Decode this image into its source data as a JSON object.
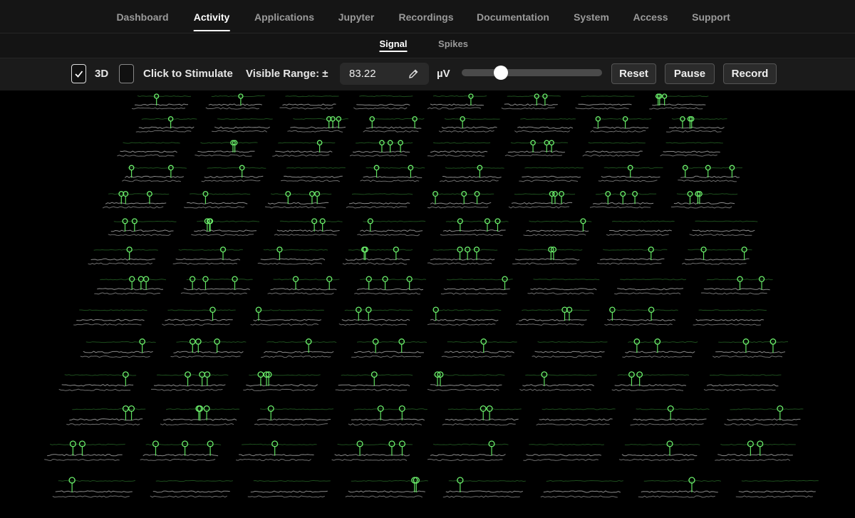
{
  "nav": {
    "items": [
      "Dashboard",
      "Activity",
      "Applications",
      "Jupyter",
      "Recordings",
      "Documentation",
      "System",
      "Access",
      "Support"
    ],
    "active": 1
  },
  "subnav": {
    "items": [
      "Signal",
      "Spikes"
    ],
    "active": 0
  },
  "toolbar": {
    "three_d": {
      "label": "3D",
      "checked": true
    },
    "stimulate": {
      "label": "Click to Stimulate",
      "checked": false
    },
    "range": {
      "label": "Visible Range: ±",
      "value": "83.22",
      "unit": "µV"
    },
    "buttons": [
      "Reset",
      "Pause",
      "Record"
    ]
  }
}
